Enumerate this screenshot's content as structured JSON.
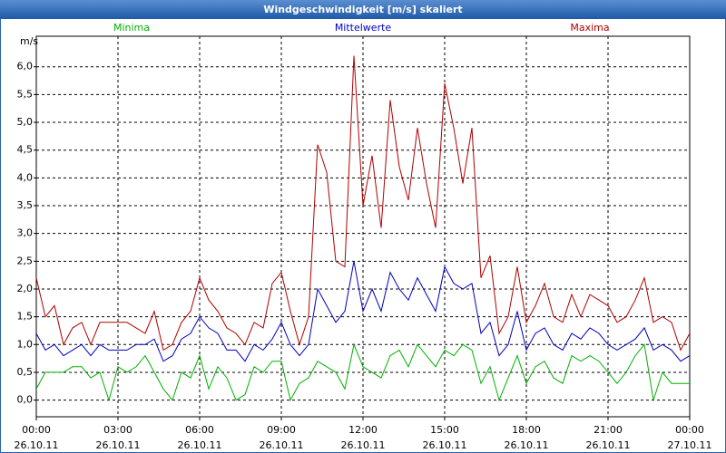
{
  "chart_data": {
    "type": "line",
    "title": "Windgeschwindigkeit [m/s] skaliert",
    "y_label": "m/s",
    "x": [
      0,
      20,
      40,
      60,
      80,
      100,
      120,
      140,
      160,
      180,
      200,
      220,
      240,
      260,
      280,
      300,
      320,
      340,
      360,
      380,
      400,
      420,
      440,
      460,
      480,
      500,
      520,
      540,
      560,
      580,
      600,
      620,
      640,
      660,
      680,
      700,
      720,
      740,
      760,
      780,
      800,
      820,
      840,
      860,
      880,
      900,
      920,
      940,
      960,
      980,
      1000,
      1020,
      1040,
      1060,
      1080,
      1100,
      1120,
      1140,
      1160,
      1180,
      1200,
      1220,
      1240,
      1260,
      1280,
      1300,
      1320,
      1340,
      1360,
      1380,
      1400,
      1420,
      1440
    ],
    "series": [
      {
        "name": "Minima",
        "color": "#00b000",
        "values": [
          0.2,
          0.5,
          0.5,
          0.5,
          0.6,
          0.6,
          0.4,
          0.5,
          0.0,
          0.6,
          0.5,
          0.6,
          0.8,
          0.5,
          0.2,
          0.0,
          0.5,
          0.4,
          0.8,
          0.2,
          0.6,
          0.4,
          0.0,
          0.1,
          0.6,
          0.5,
          0.7,
          0.7,
          0.0,
          0.3,
          0.4,
          0.7,
          0.6,
          0.5,
          0.2,
          1.0,
          0.6,
          0.5,
          0.4,
          0.8,
          0.9,
          0.6,
          1.0,
          0.8,
          0.6,
          0.9,
          0.8,
          1.0,
          0.9,
          0.3,
          0.6,
          0.0,
          0.4,
          0.8,
          0.3,
          0.6,
          0.7,
          0.4,
          0.3,
          0.8,
          0.7,
          0.8,
          0.7,
          0.5,
          0.3,
          0.5,
          0.8,
          1.0,
          0.0,
          0.5,
          0.3,
          0.3,
          0.3
        ]
      },
      {
        "name": "Mittelwerte",
        "color": "#0000c0",
        "values": [
          1.2,
          0.9,
          1.0,
          0.8,
          0.9,
          1.0,
          0.8,
          1.0,
          0.9,
          0.9,
          0.9,
          1.0,
          1.0,
          1.1,
          0.7,
          0.8,
          1.1,
          1.2,
          1.5,
          1.3,
          1.2,
          0.9,
          0.9,
          0.7,
          1.0,
          0.9,
          1.1,
          1.4,
          1.0,
          0.8,
          1.0,
          2.0,
          1.7,
          1.4,
          1.6,
          2.5,
          1.6,
          2.0,
          1.6,
          2.3,
          2.0,
          1.8,
          2.2,
          1.9,
          1.6,
          2.4,
          2.1,
          2.0,
          2.1,
          1.2,
          1.4,
          0.8,
          1.0,
          1.6,
          0.9,
          1.2,
          1.3,
          1.0,
          0.9,
          1.2,
          1.1,
          1.3,
          1.2,
          1.0,
          0.9,
          1.0,
          1.1,
          1.3,
          0.9,
          1.0,
          0.9,
          0.7,
          0.8
        ]
      },
      {
        "name": "Maxima",
        "color": "#b00000",
        "values": [
          2.2,
          1.5,
          1.7,
          1.0,
          1.3,
          1.4,
          1.0,
          1.4,
          1.4,
          1.4,
          1.4,
          1.3,
          1.2,
          1.6,
          0.9,
          1.0,
          1.4,
          1.6,
          2.2,
          1.8,
          1.6,
          1.3,
          1.2,
          1.0,
          1.4,
          1.3,
          2.1,
          2.3,
          1.6,
          1.0,
          1.5,
          4.6,
          4.1,
          2.5,
          2.4,
          6.2,
          3.5,
          4.4,
          3.1,
          5.4,
          4.2,
          3.6,
          4.9,
          3.9,
          3.1,
          5.7,
          4.9,
          3.9,
          4.9,
          2.2,
          2.6,
          1.2,
          1.5,
          2.4,
          1.4,
          1.7,
          2.1,
          1.5,
          1.4,
          1.9,
          1.5,
          1.9,
          1.8,
          1.7,
          1.4,
          1.5,
          1.8,
          2.2,
          1.4,
          1.5,
          1.4,
          0.9,
          1.2
        ]
      }
    ],
    "xlim": [
      0,
      1440
    ],
    "xticks": [
      {
        "value": 0,
        "label": "00:00 26.10.11"
      },
      {
        "value": 180,
        "label": "03:00 26.10.11"
      },
      {
        "value": 360,
        "label": "06:00 26.10.11"
      },
      {
        "value": 540,
        "label": "09:00 26.10.11"
      },
      {
        "value": 720,
        "label": "12:00 26.10.11"
      },
      {
        "value": 900,
        "label": "15:00 26.10.11"
      },
      {
        "value": 1080,
        "label": "18:00 26.10.11"
      },
      {
        "value": 1260,
        "label": "21:00 26.10.11"
      },
      {
        "value": 1440,
        "label": "00:00 27.10.11"
      }
    ],
    "ylim": [
      -0.3,
      6.55
    ],
    "yticks": [
      {
        "value": 0,
        "label": "0,0"
      },
      {
        "value": 0.5,
        "label": "0,5"
      },
      {
        "value": 1,
        "label": "1,0"
      },
      {
        "value": 1.5,
        "label": "1,5"
      },
      {
        "value": 2,
        "label": "2,0"
      },
      {
        "value": 2.5,
        "label": "2,5"
      },
      {
        "value": 3,
        "label": "3,0"
      },
      {
        "value": 3.5,
        "label": "3,5"
      },
      {
        "value": 4,
        "label": "4,0"
      },
      {
        "value": 4.5,
        "label": "4,5"
      },
      {
        "value": 5,
        "label": "5,0"
      },
      {
        "value": 5.5,
        "label": "5,5"
      },
      {
        "value": 6,
        "label": "6,0"
      }
    ],
    "grid": true
  }
}
